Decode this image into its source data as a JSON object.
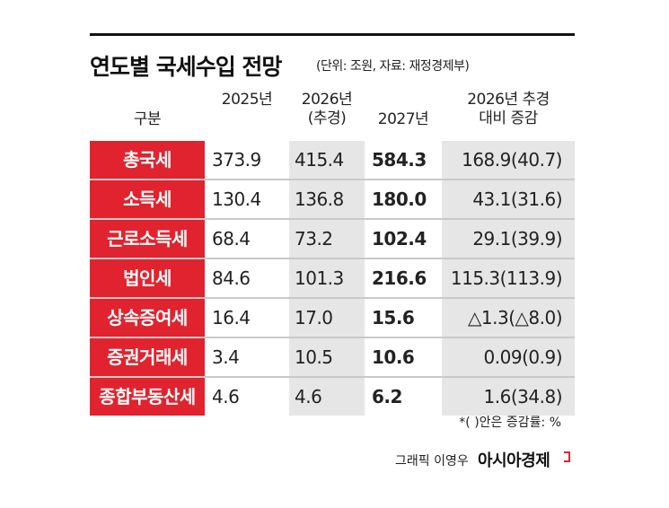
{
  "header": {
    "title": "연도별 국세수입 전망",
    "unit": "(단위: 조원, 자료: 재정경제부)"
  },
  "table": {
    "columns": [
      "구분",
      "2025년",
      "2026년\n(추경)",
      "2027년",
      "2026년 추경\n대비 증감"
    ],
    "rows": [
      [
        "총국세",
        "373.9",
        "415.4",
        "584.3",
        "168.9(40.7)"
      ],
      [
        "소득세",
        "130.4",
        "136.8",
        "180.0",
        "43.1(31.6)"
      ],
      [
        "근로소득세",
        "68.4",
        "73.2",
        "102.4",
        "29.1(39.9)"
      ],
      [
        "법인세",
        "84.6",
        "101.3",
        "216.6",
        "115.3(113.9)"
      ],
      [
        "상속증여세",
        "16.4",
        "17.0",
        "15.6",
        "△1.3(△8.0)"
      ],
      [
        "증권거래세",
        "3.4",
        "10.5",
        "10.6",
        "0.09(0.9)"
      ],
      [
        "종합부동산세",
        "4.6",
        "4.6",
        "6.2",
        "1.6(34.8)"
      ]
    ]
  },
  "footer": {
    "note": "*( )안은 증감률: %",
    "credit": "그래픽 이영우",
    "brand": "아시아경제"
  }
}
